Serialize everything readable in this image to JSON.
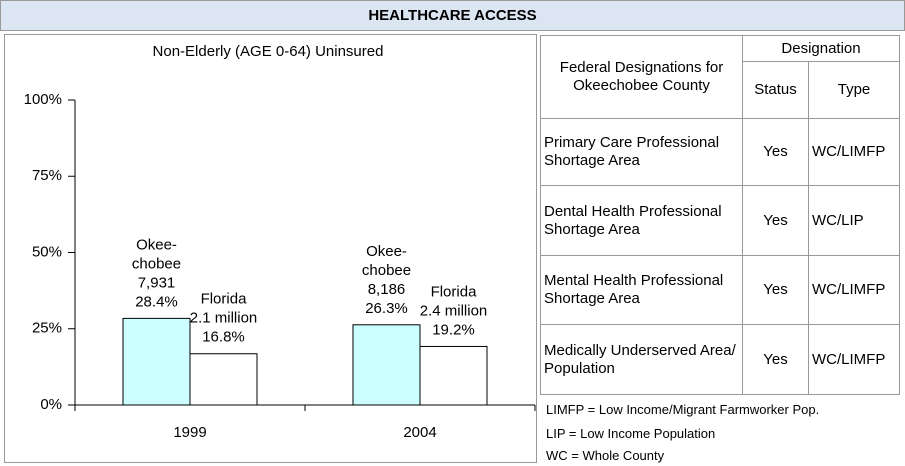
{
  "header": {
    "title": "HEALTHCARE ACCESS"
  },
  "chart_data": {
    "type": "bar",
    "title": "Non-Elderly (AGE 0-64) Uninsured",
    "categories": [
      "1999",
      "2004"
    ],
    "series": [
      {
        "color": "#ccffff",
        "values": [
          28.4,
          26.3
        ],
        "value_labels": [
          [
            "Okee-",
            "chobee",
            "7,931",
            "28.4%"
          ],
          [
            "Okee-",
            "chobee",
            "8,186",
            "26.3%"
          ]
        ]
      },
      {
        "color": "#ffffff",
        "values": [
          16.8,
          19.2
        ],
        "value_labels": [
          [
            "Florida",
            "2.1 million",
            "16.8%"
          ],
          [
            "Florida",
            "2.4 million",
            "19.2%"
          ]
        ]
      }
    ],
    "ylim": [
      0,
      100
    ],
    "yticks": [
      {
        "value": 0,
        "label": "0%"
      },
      {
        "value": 25,
        "label": "25%"
      },
      {
        "value": 50,
        "label": "50%"
      },
      {
        "value": 75,
        "label": "75%"
      },
      {
        "value": 100,
        "label": "100%"
      }
    ]
  },
  "table": {
    "header": {
      "designations": "Federal Designations for Okeechobee County",
      "group": "Designation",
      "status": "Status",
      "type": "Type"
    },
    "rows": [
      [
        "Primary Care Professional Shortage Area",
        "Yes",
        "WC/LIMFP"
      ],
      [
        "Dental Health Professional Shortage Area",
        "Yes",
        "WC/LIP"
      ],
      [
        "Mental Health Professional Shortage Area",
        "Yes",
        "WC/LIMFP"
      ],
      [
        "Medically Underserved Area/ Population",
        "Yes",
        "WC/LIMFP"
      ]
    ]
  },
  "footnotes": [
    "LIMFP = Low Income/Migrant Farmworker Pop.",
    "LIP = Low Income Population",
    "WC = Whole County"
  ]
}
